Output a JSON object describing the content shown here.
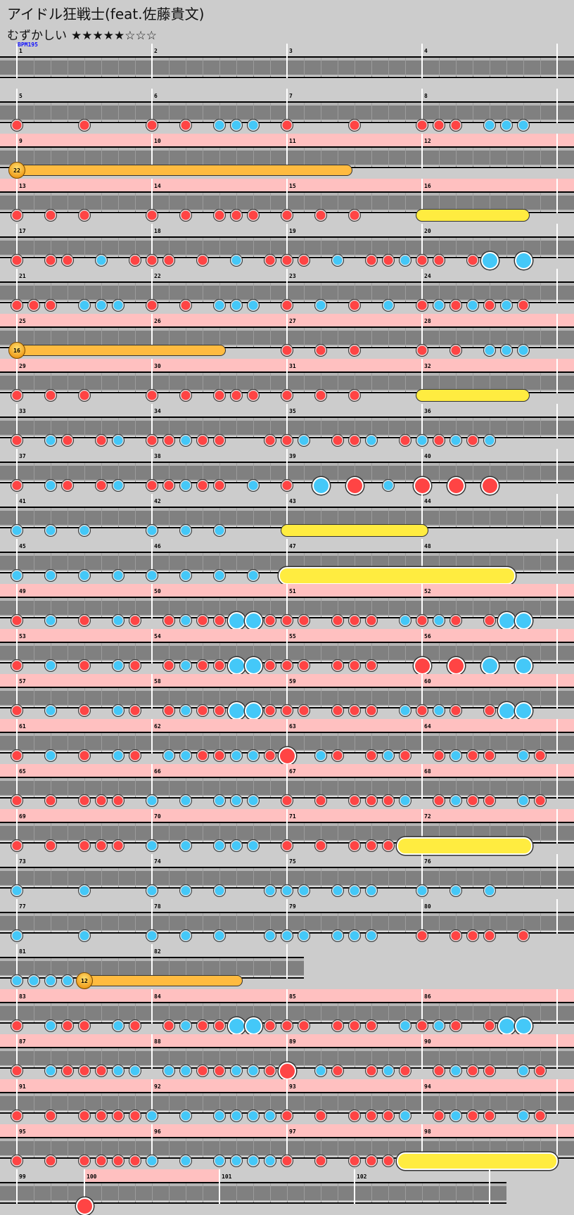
{
  "song": {
    "title": "アイドル狂戦士(feat.佐藤貴文)",
    "difficulty": "むずかしい",
    "stars": 5,
    "max_stars": 8,
    "star_filled": "★",
    "star_empty": "☆"
  },
  "bpm_label": "BPM195",
  "colors": {
    "don": "#ff4444",
    "ka": "#44c8f8",
    "roll": "#ffec40",
    "balloon": "#ffbb40",
    "gogo": "#ffc0c0",
    "lane": "#808080",
    "bpm": "#1010ff"
  },
  "legend": {
    "0": "empty",
    "1": "don",
    "2": "ka",
    "3": "big-don",
    "4": "big-ka",
    "5": "drumroll",
    "6": "big-drumroll",
    "7": "balloon",
    "8": "roll-end"
  },
  "measures": [
    {
      "n": "1",
      "notes": "00000000",
      "bpm": true
    },
    {
      "n": "2",
      "notes": "00000000"
    },
    {
      "n": "3",
      "notes": "00000000"
    },
    {
      "n": "4",
      "notes": "00000000"
    },
    {
      "n": "5",
      "notes": "10001000"
    },
    {
      "n": "6",
      "notes": "10102220"
    },
    {
      "n": "7",
      "notes": "10001000"
    },
    {
      "n": "8",
      "notes": "11102220"
    },
    {
      "n": "9",
      "notes": "70000000",
      "gogo": true,
      "balloon": "22"
    },
    {
      "n": "10",
      "notes": "00000000",
      "gogo": true
    },
    {
      "n": "11",
      "notes": "0000000800000000",
      "gogo": true
    },
    {
      "n": "12",
      "notes": "00000000",
      "gogo": true
    },
    {
      "n": "13",
      "notes": "10101000",
      "gogo": true
    },
    {
      "n": "14",
      "notes": "10101110",
      "gogo": true
    },
    {
      "n": "15",
      "notes": "10101000",
      "gogo": true
    },
    {
      "n": "16",
      "notes": "5000000000008000",
      "gogo": true
    },
    {
      "n": "17",
      "notes": "10110201"
    },
    {
      "n": "18",
      "notes": "11010201"
    },
    {
      "n": "19",
      "notes": "11020112"
    },
    {
      "n": "20",
      "notes": "11014040"
    },
    {
      "n": "21",
      "notes": "11102220"
    },
    {
      "n": "22",
      "notes": "10102220"
    },
    {
      "n": "23",
      "notes": "10201020"
    },
    {
      "n": "24",
      "notes": "12121210"
    },
    {
      "n": "25",
      "notes": "70000000",
      "gogo": true,
      "balloon": "16"
    },
    {
      "n": "26",
      "notes": "00008000",
      "gogo": true
    },
    {
      "n": "27",
      "notes": "10101000",
      "gogo": true
    },
    {
      "n": "28",
      "notes": "10102220",
      "gogo": true
    },
    {
      "n": "29",
      "notes": "10101000",
      "gogo": true
    },
    {
      "n": "30",
      "notes": "10101110",
      "gogo": true
    },
    {
      "n": "31",
      "notes": "10101000",
      "gogo": true
    },
    {
      "n": "32",
      "notes": "5000000000008000",
      "gogo": true
    },
    {
      "n": "33",
      "notes": "10210120"
    },
    {
      "n": "34",
      "notes": "11211001"
    },
    {
      "n": "35",
      "notes": "12011201"
    },
    {
      "n": "36",
      "notes": "21212000"
    },
    {
      "n": "37",
      "notes": "10210120"
    },
    {
      "n": "38",
      "notes": "11211020"
    },
    {
      "n": "39",
      "notes": "10403020"
    },
    {
      "n": "40",
      "notes": "30303000"
    },
    {
      "n": "41",
      "notes": "20202000"
    },
    {
      "n": "42",
      "notes": "20202000"
    },
    {
      "n": "43",
      "notes": "50000000"
    },
    {
      "n": "44",
      "notes": "80000000"
    },
    {
      "n": "45",
      "notes": "20202020"
    },
    {
      "n": "46",
      "notes": "20202020"
    },
    {
      "n": "47",
      "notes": "60000000"
    },
    {
      "n": "48",
      "notes": "00000800"
    },
    {
      "n": "49",
      "notes": "10201021",
      "gogo": true
    },
    {
      "n": "50",
      "notes": "01211441",
      "gogo": true
    },
    {
      "n": "51",
      "notes": "11011102",
      "gogo": true
    },
    {
      "n": "52",
      "notes": "12101440",
      "gogo": true
    },
    {
      "n": "53",
      "notes": "10201021",
      "gogo": true
    },
    {
      "n": "54",
      "notes": "01211441",
      "gogo": true
    },
    {
      "n": "55",
      "notes": "11011100",
      "gogo": true
    },
    {
      "n": "56",
      "notes": "30304040",
      "gogo": true
    },
    {
      "n": "57",
      "notes": "10201021",
      "gogo": true
    },
    {
      "n": "58",
      "notes": "01211441",
      "gogo": true
    },
    {
      "n": "59",
      "notes": "11011102",
      "gogo": true
    },
    {
      "n": "60",
      "notes": "12101440",
      "gogo": true
    },
    {
      "n": "61",
      "notes": "10201021",
      "gogo": true
    },
    {
      "n": "62",
      "notes": "02211221",
      "gogo": true
    },
    {
      "n": "63",
      "notes": "30210121",
      "gogo": true
    },
    {
      "n": "64",
      "notes": "01211021",
      "gogo": true
    },
    {
      "n": "65",
      "notes": "10101110",
      "gogo": true
    },
    {
      "n": "66",
      "notes": "20202220",
      "gogo": true
    },
    {
      "n": "67",
      "notes": "10101112",
      "gogo": true
    },
    {
      "n": "68",
      "notes": "01211021",
      "gogo": true
    },
    {
      "n": "69",
      "notes": "10101110",
      "gogo": true
    },
    {
      "n": "70",
      "notes": "20202220",
      "gogo": true
    },
    {
      "n": "71",
      "notes": "10101116",
      "gogo": true
    },
    {
      "n": "72",
      "notes": "00000080",
      "gogo": true
    },
    {
      "n": "73",
      "notes": "20002000"
    },
    {
      "n": "74",
      "notes": "20202002"
    },
    {
      "n": "75",
      "notes": "22022200"
    },
    {
      "n": "76",
      "notes": "20202000"
    },
    {
      "n": "77",
      "notes": "20002000"
    },
    {
      "n": "78",
      "notes": "20202002"
    },
    {
      "n": "79",
      "notes": "22022200"
    },
    {
      "n": "80",
      "notes": "10111010"
    },
    {
      "n": "81",
      "notes": "22227000",
      "balloon": "12"
    },
    {
      "n": "82",
      "notes": "00000800",
      "line_break": true
    },
    {
      "n": "83",
      "notes": "10211021",
      "gogo": true
    },
    {
      "n": "84",
      "notes": "01211441",
      "gogo": true
    },
    {
      "n": "85",
      "notes": "11011102",
      "gogo": true
    },
    {
      "n": "86",
      "notes": "12101440",
      "gogo": true
    },
    {
      "n": "87",
      "notes": "10211122",
      "gogo": true
    },
    {
      "n": "88",
      "notes": "02211221",
      "gogo": true
    },
    {
      "n": "89",
      "notes": "30210121",
      "gogo": true
    },
    {
      "n": "90",
      "notes": "01211021",
      "gogo": true
    },
    {
      "n": "91",
      "notes": "10101111",
      "gogo": true
    },
    {
      "n": "92",
      "notes": "20202222",
      "gogo": true
    },
    {
      "n": "93",
      "notes": "10101112",
      "gogo": true
    },
    {
      "n": "94",
      "notes": "01211021",
      "gogo": true
    },
    {
      "n": "95",
      "notes": "10101111",
      "gogo": true
    },
    {
      "n": "96",
      "notes": "20202222",
      "gogo": true
    },
    {
      "n": "97",
      "notes": "10101116",
      "gogo": true
    },
    {
      "n": "98",
      "notes": "0000000000000008",
      "gogo": true
    },
    {
      "n": "99",
      "notes": "0000",
      "length": 0.5
    },
    {
      "n": "100",
      "notes": "30000000",
      "gogo": true
    },
    {
      "n": "101",
      "notes": "00000000"
    },
    {
      "n": "102",
      "notes": "00000000"
    }
  ]
}
